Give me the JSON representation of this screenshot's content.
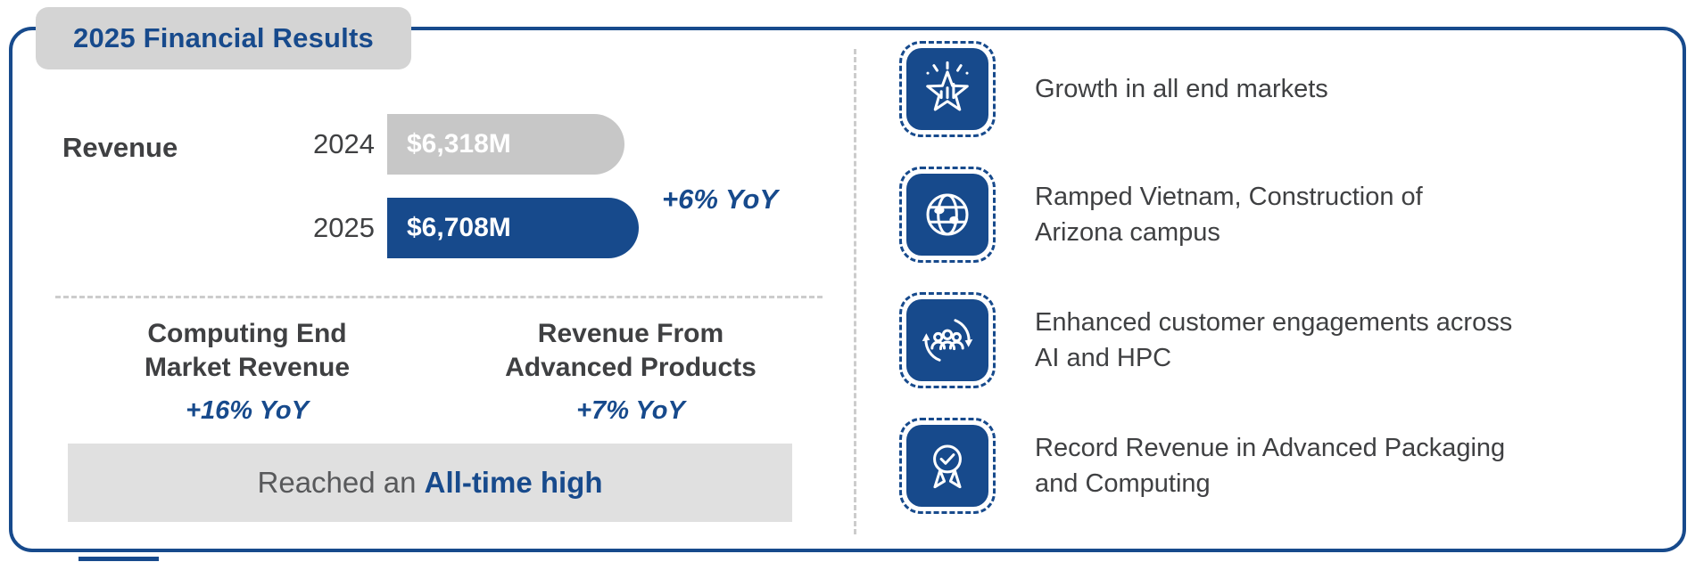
{
  "colors": {
    "brand_blue": "#174a8c",
    "bar_gray": "#c7c7c7",
    "badge_gray": "#d4d4d4",
    "banner_gray": "#e0e0e0",
    "divider_gray": "#cccccc",
    "text_dark": "#3f4042",
    "banner_text_gray": "#58595b"
  },
  "title": "2025 Financial Results",
  "chart_data": {
    "type": "bar",
    "orientation": "horizontal",
    "title": "Revenue",
    "categories": [
      "2024",
      "2025"
    ],
    "values": [
      6318,
      6708
    ],
    "value_labels": [
      "$6,318M",
      "$6,708M"
    ],
    "bar_colors": [
      "#c7c7c7",
      "#174a8c"
    ],
    "annotation": "+6% YoY",
    "unit": "$M"
  },
  "revenue": {
    "label": "Revenue",
    "rows": [
      {
        "year": "2024",
        "value_label": "$6,318M"
      },
      {
        "year": "2025",
        "value_label": "$6,708M"
      }
    ],
    "yoy": "+6% YoY"
  },
  "metrics": [
    {
      "title": "Computing End\nMarket Revenue",
      "yoy": "+16% YoY"
    },
    {
      "title": "Revenue From\nAdvanced Products",
      "yoy": "+7% YoY"
    }
  ],
  "banner": {
    "prefix": "Reached an ",
    "highlight": "All-time high"
  },
  "highlights": [
    {
      "icon": "growth-star-icon",
      "text": "Growth in all end markets"
    },
    {
      "icon": "globe-icon",
      "text": "Ramped Vietnam, Construction of\nArizona campus"
    },
    {
      "icon": "people-cycle-icon",
      "text": "Enhanced customer engagements across\nAI and HPC"
    },
    {
      "icon": "award-ribbon-icon",
      "text": "Record Revenue in Advanced Packaging\nand Computing"
    }
  ]
}
